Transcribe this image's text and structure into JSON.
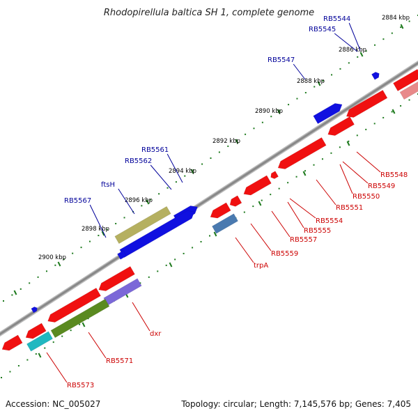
{
  "title": "Rhodopirellula baltica SH 1, complete genome",
  "footer": {
    "accession": "Accession: NC_005027",
    "topology": "Topology: circular; Length: 7,145,576 bp; Genes: 7,405"
  },
  "colors": {
    "backbone": "#888888",
    "forward_gene": "#1010e0",
    "reverse_gene": "#f01010",
    "forward_label": "#000099",
    "reverse_label": "#cc0000",
    "tick_mark": "#1e7a1e"
  },
  "ticks": [
    "2884 kbp",
    "2886 kbp",
    "2888 kbp",
    "2890 kbp",
    "2892 kbp",
    "2894 kbp",
    "2896 kbp",
    "2898 kbp",
    "2900 kbp"
  ],
  "forward_labels": [
    "RB5544",
    "RB5545",
    "RB5547",
    "RB5561",
    "RB5562",
    "ftsH",
    "RB5567"
  ],
  "reverse_labels": [
    "RB5548",
    "RB5549",
    "RB5550",
    "RB5551",
    "RB5554",
    "RB5555",
    "RB5557",
    "RB5559",
    "trpA",
    "dxr",
    "RB5571",
    "RB5573"
  ]
}
